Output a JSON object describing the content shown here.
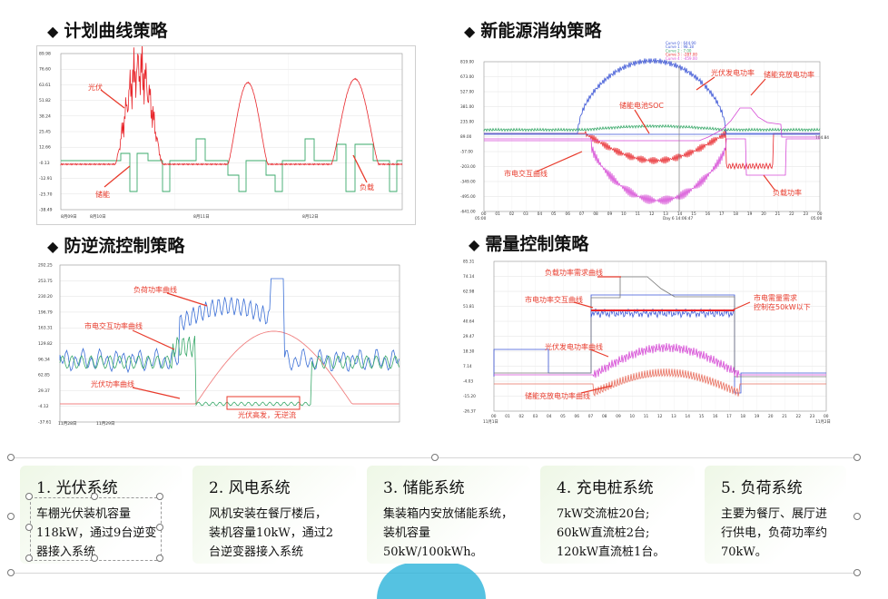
{
  "sections": {
    "plan_curve": "计划曲线策略",
    "new_energy": "新能源消纳策略",
    "anti_backflow": "防逆流控制策略",
    "demand": "需量控制策略"
  },
  "chart1": {
    "y_ticks": [
      "89.98",
      "76.60",
      "63.61",
      "51.82",
      "38.24",
      "25.45",
      "12.66",
      "-0.13",
      "-12.91",
      "-25.70",
      "-38.49"
    ],
    "x_ticks": [
      "8月09日",
      "8月10日",
      "8月11日",
      "8月12日"
    ],
    "labels": {
      "pv": "光伏",
      "storage": "储能",
      "load": "负载"
    }
  },
  "chart2": {
    "y_ticks": [
      "819.00",
      "673.00",
      "527.00",
      "381.00",
      "235.00",
      "89.00",
      "-57.00",
      "-203.00",
      "-349.00",
      "-495.00",
      "-641.00"
    ],
    "x_ticks": [
      "00",
      "01",
      "02",
      "03",
      "04",
      "05",
      "06",
      "07",
      "08",
      "09",
      "10",
      "11",
      "12",
      "13",
      "14",
      "15",
      "16",
      "17",
      "18",
      "19",
      "20",
      "21",
      "22",
      "23",
      "00"
    ],
    "x_date_left": "05:00",
    "x_date_right": "05:00",
    "cursor_label": "Day 6 14:06:47",
    "right_value": "104.84",
    "legend": [
      "Curve 0 : 644.90",
      "Curve 1 : 98.18",
      "Curve 2 : 7.00",
      "Curve 3 : -287.00",
      "Curve 4 : -459.00"
    ],
    "labels": {
      "pv": "光伏发电功率",
      "storage_power": "储能充放电功率",
      "soc": "储能电池SOC",
      "grid": "市电交互曲线",
      "load": "负载功率"
    }
  },
  "chart3": {
    "y_ticks": [
      "292.25",
      "253.75",
      "230.20",
      "196.79",
      "163.31",
      "129.82",
      "96.34",
      "62.85",
      "29.37",
      "-4.12",
      "-37.61"
    ],
    "x_ticks": [
      "11月28日",
      "11月29日"
    ],
    "labels": {
      "load": "负荷功率曲线",
      "grid": "市电交互功率曲线",
      "pv": "光伏功率曲线",
      "box": "光伏高发，无逆流"
    }
  },
  "chart4": {
    "y_ticks": [
      "85.31",
      "74.14",
      "62.98",
      "51.81",
      "40.64",
      "29.47",
      "18.30",
      "7.14",
      "-4.03",
      "-15.20",
      "-26.37"
    ],
    "x_ticks": [
      "00",
      "01",
      "02",
      "03",
      "04",
      "05",
      "06",
      "07",
      "08",
      "09",
      "10",
      "11",
      "12",
      "13",
      "14",
      "15",
      "16",
      "17",
      "18",
      "19",
      "20",
      "21",
      "22",
      "23",
      "00"
    ],
    "x_date_left": "11月1日",
    "x_date_right": "11月2日",
    "labels": {
      "load": "负载功率需求曲线",
      "grid": "市电功率交互曲线",
      "pv": "光伏发电功率曲线",
      "storage": "储能充放电功率曲线",
      "demand": "市电需量需求控制在50kW以下"
    }
  },
  "cards": [
    {
      "title": "1. 光伏系统",
      "body": "车棚光伏装机容量\n118kW，通过9台逆变\n器接入系统"
    },
    {
      "title": "2. 风电系统",
      "body": "风机安装在餐厅楼后，\n装机容量10kW，通过2\n台逆变器接入系统"
    },
    {
      "title": "3. 储能系统",
      "body": "集装箱内安放储能系统，\n装机容量50kW/100kWh。"
    },
    {
      "title": "4. 充电桩系统",
      "body": "7kW交流桩20台;\n60kW直流桩2台;\n120kW直流桩1台。"
    },
    {
      "title": "5. 负荷系统",
      "body": "主要为餐厅、展厅进\n行供电，负荷功率约\n70kW。"
    }
  ],
  "colors": {
    "red": "#e8262b",
    "green": "#3aa96a",
    "blue": "#3b55d6",
    "magenta": "#d64bd6",
    "grid": "#dddddd",
    "accent": "#e83b2c"
  }
}
